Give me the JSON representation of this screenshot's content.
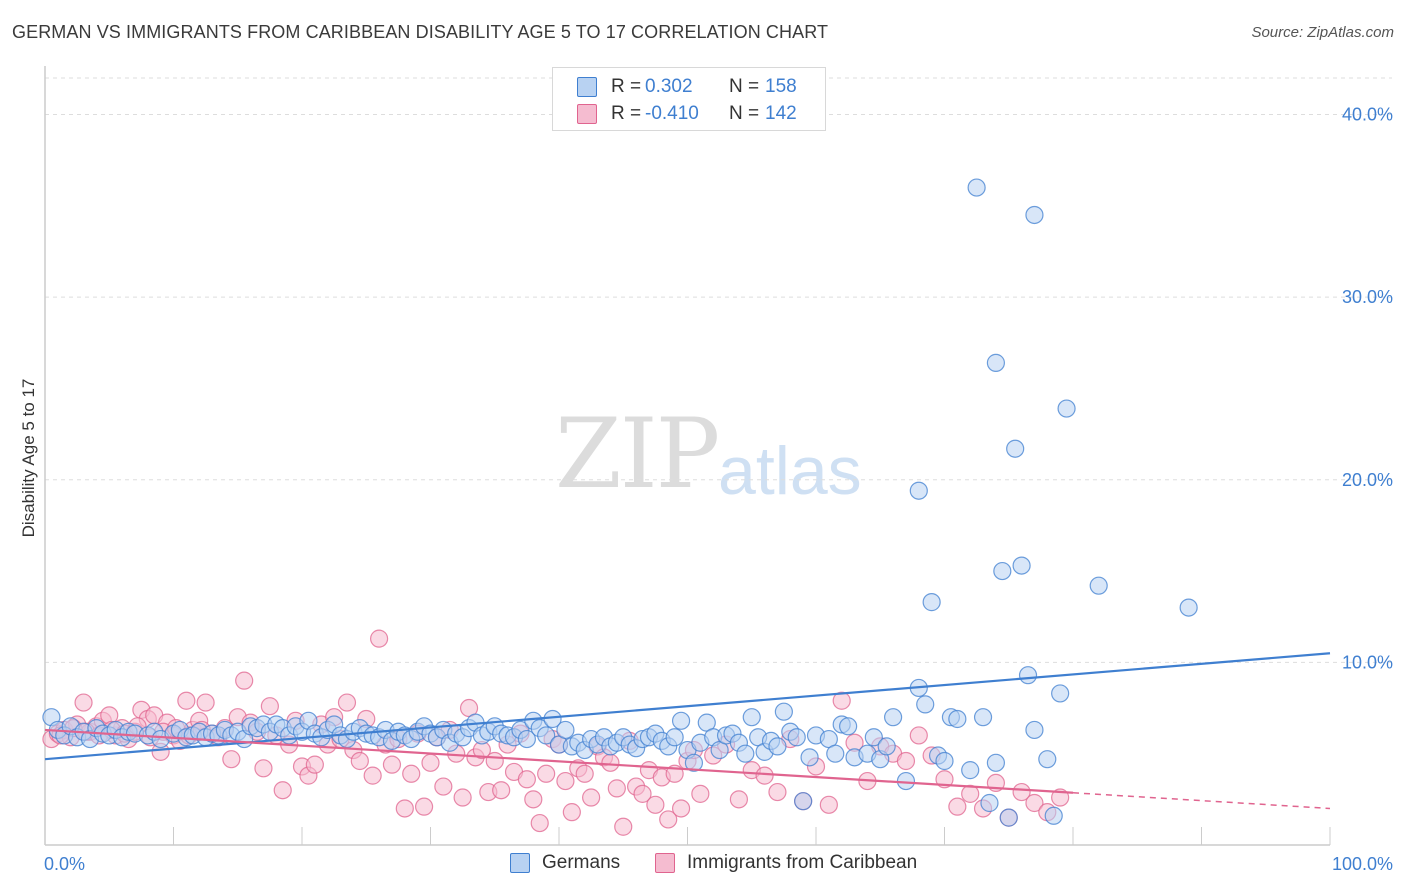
{
  "title": "GERMAN VS IMMIGRANTS FROM CARIBBEAN DISABILITY AGE 5 TO 17 CORRELATION CHART",
  "source": "Source: ZipAtlas.com",
  "watermark": {
    "zip": "ZIP",
    "atlas": "atlas"
  },
  "legend": {
    "series": [
      {
        "r_label": "R =",
        "r_value": "0.302",
        "n_label": "N =",
        "n_value": "158"
      },
      {
        "r_label": "R =",
        "r_value": "-0.410",
        "n_label": "N =",
        "n_value": "142"
      }
    ]
  },
  "bottom_legend": [
    "Germans",
    "Immigrants from Caribbean"
  ],
  "colors": {
    "blue": "#3f7fd0",
    "blue_fill": "#b8d2f2",
    "pink": "#e0648f",
    "pink_fill": "#f5bcd0"
  },
  "chart_data": {
    "type": "scatter",
    "title": "GERMAN VS IMMIGRANTS FROM CARIBBEAN DISABILITY AGE 5 TO 17 CORRELATION CHART",
    "xlabel": "",
    "ylabel": "Disability Age 5 to 17",
    "xlim": [
      0,
      100
    ],
    "ylim": [
      0,
      42
    ],
    "x_tick_labels": [
      "0.0%",
      "100.0%"
    ],
    "y_ticks": [
      10,
      20,
      30,
      40
    ],
    "y_tick_labels": [
      "10.0%",
      "20.0%",
      "30.0%",
      "40.0%"
    ],
    "grid": true,
    "legend_position": "top-center",
    "series": [
      {
        "name": "Germans",
        "color": "#3f7fd0",
        "trend": {
          "x": [
            0,
            100
          ],
          "y": [
            4.7,
            10.5
          ],
          "dashed_from": null
        },
        "points": [
          [
            0.5,
            7.0
          ],
          [
            1,
            6.3
          ],
          [
            1.5,
            6.0
          ],
          [
            2,
            6.5
          ],
          [
            2.5,
            5.9
          ],
          [
            3,
            6.2
          ],
          [
            3.5,
            5.8
          ],
          [
            4,
            6.4
          ],
          [
            4.5,
            6.1
          ],
          [
            5,
            6.0
          ],
          [
            5.5,
            6.3
          ],
          [
            6,
            5.9
          ],
          [
            6.5,
            6.2
          ],
          [
            7,
            6.1
          ],
          [
            8,
            6.0
          ],
          [
            8.5,
            6.2
          ],
          [
            9,
            5.8
          ],
          [
            10,
            6.1
          ],
          [
            10.5,
            6.3
          ],
          [
            11,
            5.9
          ],
          [
            11.5,
            6.0
          ],
          [
            12,
            6.2
          ],
          [
            12.5,
            5.9
          ],
          [
            13,
            6.1
          ],
          [
            13.5,
            6.0
          ],
          [
            14,
            6.3
          ],
          [
            14.5,
            6.0
          ],
          [
            15,
            6.2
          ],
          [
            15.5,
            5.8
          ],
          [
            16,
            6.5
          ],
          [
            16.5,
            6.4
          ],
          [
            17,
            6.6
          ],
          [
            17.5,
            6.2
          ],
          [
            18,
            6.6
          ],
          [
            18.5,
            6.4
          ],
          [
            19,
            6.0
          ],
          [
            19.5,
            6.5
          ],
          [
            20,
            6.2
          ],
          [
            20.5,
            6.8
          ],
          [
            21,
            6.1
          ],
          [
            21.5,
            5.9
          ],
          [
            22,
            6.3
          ],
          [
            22.5,
            6.6
          ],
          [
            23,
            6.0
          ],
          [
            23.5,
            5.8
          ],
          [
            24,
            6.2
          ],
          [
            24.5,
            6.4
          ],
          [
            25,
            6.1
          ],
          [
            25.5,
            6.0
          ],
          [
            26,
            5.9
          ],
          [
            26.5,
            6.3
          ],
          [
            27,
            5.7
          ],
          [
            27.5,
            6.2
          ],
          [
            28,
            6.0
          ],
          [
            28.5,
            5.8
          ],
          [
            29,
            6.2
          ],
          [
            29.5,
            6.5
          ],
          [
            30,
            6.1
          ],
          [
            30.5,
            5.9
          ],
          [
            31,
            6.3
          ],
          [
            31.5,
            5.6
          ],
          [
            32,
            6.1
          ],
          [
            32.5,
            5.9
          ],
          [
            33,
            6.4
          ],
          [
            33.5,
            6.7
          ],
          [
            34,
            6.0
          ],
          [
            34.5,
            6.2
          ],
          [
            35,
            6.5
          ],
          [
            35.5,
            6.1
          ],
          [
            36,
            6.0
          ],
          [
            36.5,
            5.9
          ],
          [
            37,
            6.3
          ],
          [
            37.5,
            5.8
          ],
          [
            38,
            6.8
          ],
          [
            38.5,
            6.4
          ],
          [
            39,
            6.0
          ],
          [
            39.5,
            6.9
          ],
          [
            40,
            5.5
          ],
          [
            40.5,
            6.3
          ],
          [
            41,
            5.4
          ],
          [
            41.5,
            5.6
          ],
          [
            42,
            5.2
          ],
          [
            42.5,
            5.8
          ],
          [
            43,
            5.5
          ],
          [
            43.5,
            5.9
          ],
          [
            44,
            5.4
          ],
          [
            44.5,
            5.6
          ],
          [
            45,
            5.9
          ],
          [
            45.5,
            5.5
          ],
          [
            46,
            5.3
          ],
          [
            46.5,
            5.8
          ],
          [
            47,
            5.9
          ],
          [
            47.5,
            6.1
          ],
          [
            48,
            5.7
          ],
          [
            48.5,
            5.4
          ],
          [
            49,
            5.9
          ],
          [
            49.5,
            6.8
          ],
          [
            50,
            5.2
          ],
          [
            50.5,
            4.5
          ],
          [
            51,
            5.6
          ],
          [
            51.5,
            6.7
          ],
          [
            52,
            5.9
          ],
          [
            52.5,
            5.2
          ],
          [
            53,
            6.0
          ],
          [
            53.5,
            6.1
          ],
          [
            54,
            5.6
          ],
          [
            54.5,
            5.0
          ],
          [
            55,
            7.0
          ],
          [
            55.5,
            5.9
          ],
          [
            56,
            5.1
          ],
          [
            56.5,
            5.7
          ],
          [
            57,
            5.4
          ],
          [
            57.5,
            7.3
          ],
          [
            58,
            6.2
          ],
          [
            58.5,
            5.9
          ],
          [
            59,
            2.4
          ],
          [
            59.5,
            4.8
          ],
          [
            60,
            6.0
          ],
          [
            61,
            5.8
          ],
          [
            61.5,
            5.0
          ],
          [
            62,
            6.6
          ],
          [
            62.5,
            6.5
          ],
          [
            63,
            4.8
          ],
          [
            64,
            5.0
          ],
          [
            64.5,
            5.9
          ],
          [
            65,
            4.7
          ],
          [
            65.5,
            5.4
          ],
          [
            66,
            7.0
          ],
          [
            67,
            3.5
          ],
          [
            68,
            8.6
          ],
          [
            68.5,
            7.7
          ],
          [
            69,
            13.3
          ],
          [
            69.5,
            4.9
          ],
          [
            70,
            4.6
          ],
          [
            70.5,
            7.0
          ],
          [
            71,
            6.9
          ],
          [
            72,
            4.1
          ],
          [
            73,
            7.0
          ],
          [
            73.5,
            2.3
          ],
          [
            74,
            4.5
          ],
          [
            74.5,
            15.0
          ],
          [
            75,
            1.5
          ],
          [
            76,
            15.3
          ],
          [
            76.5,
            9.3
          ],
          [
            77,
            6.3
          ],
          [
            78,
            4.7
          ],
          [
            78.5,
            1.6
          ],
          [
            79,
            8.3
          ],
          [
            72.5,
            36.0
          ],
          [
            77,
            34.5
          ],
          [
            74,
            26.4
          ],
          [
            79.5,
            23.9
          ],
          [
            75.5,
            21.7
          ],
          [
            68,
            19.4
          ],
          [
            82,
            14.2
          ],
          [
            89,
            13.0
          ]
        ]
      },
      {
        "name": "Immigrants from Caribbean",
        "color": "#e0648f",
        "trend": {
          "x": [
            0,
            100
          ],
          "y": [
            6.3,
            2.0
          ],
          "dashed_from": 80
        },
        "points": [
          [
            0.5,
            5.8
          ],
          [
            1,
            6.1
          ],
          [
            1.5,
            6.3
          ],
          [
            2,
            5.9
          ],
          [
            2.5,
            6.6
          ],
          [
            3,
            7.8
          ],
          [
            3.5,
            6.2
          ],
          [
            4,
            6.5
          ],
          [
            4.5,
            6.8
          ],
          [
            5,
            7.1
          ],
          [
            5.5,
            6.0
          ],
          [
            6,
            6.4
          ],
          [
            6.5,
            5.8
          ],
          [
            7,
            6.2
          ],
          [
            7.5,
            7.4
          ],
          [
            8,
            6.9
          ],
          [
            8.5,
            7.1
          ],
          [
            9,
            5.1
          ],
          [
            9.5,
            6.7
          ],
          [
            10,
            6.0
          ],
          [
            10.5,
            5.7
          ],
          [
            11,
            7.9
          ],
          [
            11.5,
            6.3
          ],
          [
            12,
            6.8
          ],
          [
            12.5,
            7.8
          ],
          [
            13,
            6.1
          ],
          [
            13.5,
            5.9
          ],
          [
            14,
            6.4
          ],
          [
            14.5,
            4.7
          ],
          [
            15,
            7.0
          ],
          [
            15.5,
            9.0
          ],
          [
            16,
            6.7
          ],
          [
            16.5,
            6.2
          ],
          [
            17,
            4.2
          ],
          [
            17.5,
            7.6
          ],
          [
            18,
            6.0
          ],
          [
            18.5,
            3.0
          ],
          [
            19,
            5.5
          ],
          [
            19.5,
            6.8
          ],
          [
            20,
            4.3
          ],
          [
            20.5,
            3.8
          ],
          [
            21,
            4.4
          ],
          [
            21.5,
            6.6
          ],
          [
            22,
            5.5
          ],
          [
            22.5,
            7.0
          ],
          [
            23,
            5.8
          ],
          [
            23.5,
            7.8
          ],
          [
            24,
            5.2
          ],
          [
            24.5,
            4.6
          ],
          [
            25,
            6.9
          ],
          [
            25.5,
            3.8
          ],
          [
            26,
            11.3
          ],
          [
            26.5,
            5.5
          ],
          [
            27,
            4.4
          ],
          [
            27.5,
            5.8
          ],
          [
            28,
            2.0
          ],
          [
            28.5,
            3.9
          ],
          [
            29,
            6.1
          ],
          [
            29.5,
            2.1
          ],
          [
            30,
            4.5
          ],
          [
            30.5,
            5.9
          ],
          [
            31,
            3.2
          ],
          [
            31.5,
            6.3
          ],
          [
            32,
            5.0
          ],
          [
            32.5,
            2.6
          ],
          [
            33,
            7.5
          ],
          [
            33.5,
            4.8
          ],
          [
            34,
            5.2
          ],
          [
            34.5,
            2.9
          ],
          [
            35,
            4.6
          ],
          [
            35.5,
            3.0
          ],
          [
            36,
            5.5
          ],
          [
            36.5,
            4.0
          ],
          [
            37,
            6.1
          ],
          [
            37.5,
            3.6
          ],
          [
            38,
            2.5
          ],
          [
            38.5,
            1.2
          ],
          [
            39,
            3.9
          ],
          [
            39.5,
            5.8
          ],
          [
            40,
            5.5
          ],
          [
            40.5,
            3.5
          ],
          [
            41,
            1.8
          ],
          [
            41.5,
            4.2
          ],
          [
            42,
            3.9
          ],
          [
            42.5,
            2.6
          ],
          [
            43,
            5.4
          ],
          [
            43.5,
            4.8
          ],
          [
            44,
            4.5
          ],
          [
            44.5,
            3.1
          ],
          [
            45,
            1.0
          ],
          [
            45.5,
            5.7
          ],
          [
            46,
            3.2
          ],
          [
            46.5,
            2.8
          ],
          [
            47,
            4.1
          ],
          [
            47.5,
            2.2
          ],
          [
            48,
            3.7
          ],
          [
            48.5,
            1.4
          ],
          [
            49,
            3.9
          ],
          [
            49.5,
            2.0
          ],
          [
            50,
            4.6
          ],
          [
            50.5,
            5.2
          ],
          [
            51,
            2.8
          ],
          [
            52,
            4.9
          ],
          [
            53,
            5.5
          ],
          [
            54,
            2.5
          ],
          [
            55,
            4.1
          ],
          [
            56,
            3.8
          ],
          [
            57,
            2.9
          ],
          [
            58,
            5.8
          ],
          [
            59,
            2.4
          ],
          [
            60,
            4.3
          ],
          [
            61,
            2.2
          ],
          [
            62,
            7.9
          ],
          [
            63,
            5.6
          ],
          [
            64,
            3.5
          ],
          [
            65,
            5.4
          ],
          [
            66,
            5.0
          ],
          [
            67,
            4.6
          ],
          [
            68,
            6.0
          ],
          [
            69,
            4.9
          ],
          [
            70,
            3.6
          ],
          [
            71,
            2.1
          ],
          [
            72,
            2.8
          ],
          [
            73,
            2.0
          ],
          [
            74,
            3.4
          ],
          [
            75,
            1.5
          ],
          [
            76,
            2.9
          ],
          [
            77,
            2.3
          ],
          [
            78,
            1.8
          ],
          [
            79,
            2.6
          ],
          [
            1.2,
            6.0
          ],
          [
            2.2,
            6.4
          ],
          [
            3.2,
            6.2
          ],
          [
            4.2,
            6.0
          ],
          [
            5.2,
            6.3
          ],
          [
            6.2,
            6.1
          ],
          [
            7.2,
            6.5
          ],
          [
            8.2,
            5.9
          ],
          [
            9.2,
            6.2
          ],
          [
            10.2,
            6.4
          ],
          [
            11.2,
            6.0
          ],
          [
            12.2,
            6.3
          ]
        ]
      }
    ]
  }
}
